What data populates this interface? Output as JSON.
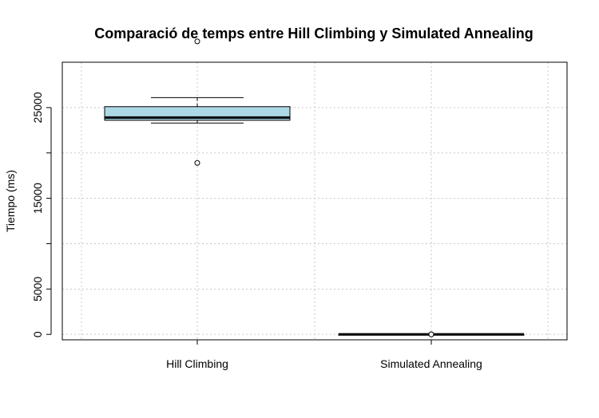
{
  "chart_data": {
    "type": "boxplot",
    "title": "Comparació de temps entre Hill Climbing y Simulated Annealing",
    "xlabel": "",
    "ylabel": "Tiempo (ms)",
    "ylim": [
      -600,
      30000
    ],
    "yticks": [
      0,
      5000,
      10000,
      15000,
      20000,
      25000
    ],
    "ytick_labels": [
      "0",
      "5000",
      "",
      "15000",
      "",
      "25000"
    ],
    "grid": true,
    "box_color": "#add8e6",
    "categories": [
      "Hill Climbing",
      "Simulated Annealing"
    ],
    "boxes": [
      {
        "whisker_low": 23300,
        "q1": 23600,
        "median": 23900,
        "q3": 25100,
        "whisker_high": 26100,
        "outliers": [
          18900,
          32300
        ]
      },
      {
        "whisker_low": 0,
        "q1": 0,
        "median": 0,
        "q3": 0,
        "whisker_high": 0,
        "outliers": [
          0,
          0,
          0
        ]
      }
    ]
  }
}
